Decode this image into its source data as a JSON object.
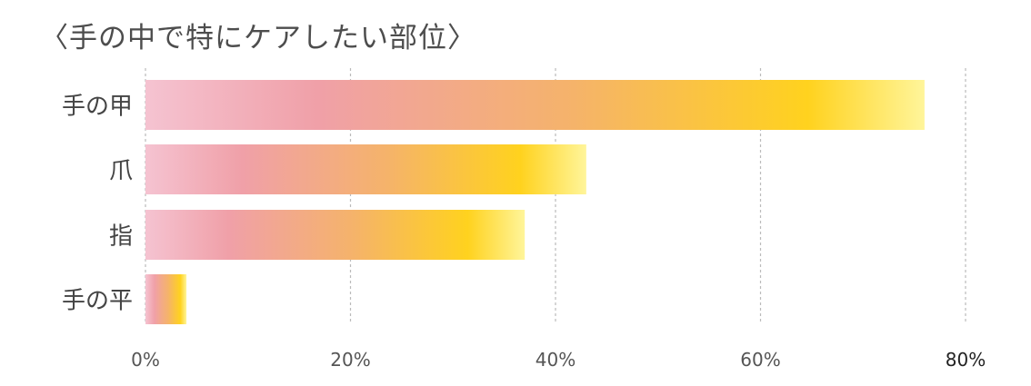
{
  "chart_data": {
    "type": "bar",
    "orientation": "horizontal",
    "title": "〈手の中で特にケアしたい部位〉",
    "categories": [
      "手の甲",
      "爪",
      "指",
      "手の平"
    ],
    "values": [
      76,
      43,
      37,
      4
    ],
    "x_ticks": [
      "0%",
      "20%",
      "40%",
      "60%",
      "80%"
    ],
    "xlim": [
      0,
      80
    ],
    "grid": "vertical dotted",
    "colors": {
      "gradient": [
        "#f5c3d1",
        "#f0a0a8",
        "#f5b36a",
        "#ffd21e",
        "#fff59a"
      ],
      "grid": "#bbbbbb",
      "tick_text": "#555555",
      "last_tick_text": "#222222",
      "category_text": "#444444"
    }
  }
}
